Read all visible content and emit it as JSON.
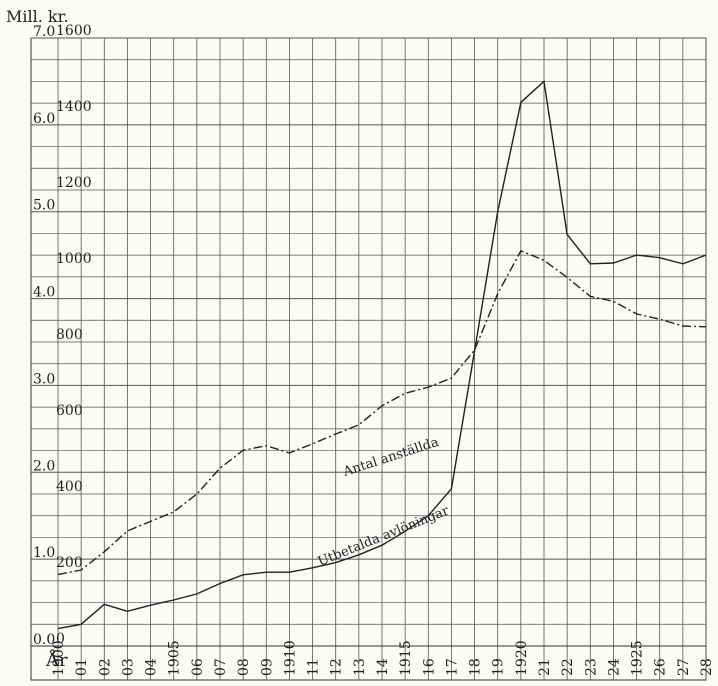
{
  "chart_data": {
    "type": "line",
    "y_unit_label": "Mill. kr.",
    "x_axis_word": "År",
    "x": [
      1900,
      1901,
      1902,
      1903,
      1904,
      1905,
      1906,
      1907,
      1908,
      1909,
      1910,
      1911,
      1912,
      1913,
      1914,
      1915,
      1916,
      1917,
      1918,
      1919,
      1920,
      1921,
      1922,
      1923,
      1924,
      1925,
      1926,
      1927,
      1928
    ],
    "x_tick_labels": [
      "1900",
      "01",
      "02",
      "03",
      "04",
      "1905",
      "06",
      "07",
      "08",
      "09",
      "1910",
      "11",
      "12",
      "13",
      "14",
      "1915",
      "16",
      "17",
      "18",
      "19",
      "1920",
      "21",
      "22",
      "23",
      "24",
      "1925",
      "26",
      "27",
      "28"
    ],
    "ylim_left": [
      0,
      7
    ],
    "ylim_right": [
      0,
      1600
    ],
    "y_tick_labels_left": [
      "0.0",
      "1.0",
      "2.0",
      "3.0",
      "4.0",
      "5.0",
      "6.0",
      "7.0"
    ],
    "y_tick_labels_right": [
      "0",
      "200",
      "400",
      "600",
      "800",
      "1000",
      "1200",
      "1400",
      "1600"
    ],
    "grid": true,
    "series": [
      {
        "name": "Utbetalda avlöningar",
        "axis": "left",
        "style": "solid",
        "values": [
          0.2,
          0.25,
          0.48,
          0.4,
          0.47,
          0.53,
          0.6,
          0.72,
          0.82,
          0.85,
          0.85,
          0.9,
          0.96,
          1.05,
          1.16,
          1.32,
          1.5,
          1.81,
          3.4,
          5.0,
          6.26,
          6.5,
          4.74,
          4.4,
          4.41,
          4.5,
          4.47,
          4.4,
          4.5
        ]
      },
      {
        "name": "Antal anställda",
        "axis": "right",
        "style": "dash-dot",
        "values": [
          188,
          200,
          248,
          303,
          328,
          353,
          400,
          468,
          515,
          527,
          508,
          532,
          558,
          582,
          632,
          665,
          681,
          705,
          779,
          927,
          1040,
          1015,
          970,
          920,
          907,
          874,
          860,
          842,
          840
        ]
      }
    ],
    "series_label_texts": [
      "Antal anställda",
      "Utbetalda avlöningar"
    ]
  }
}
